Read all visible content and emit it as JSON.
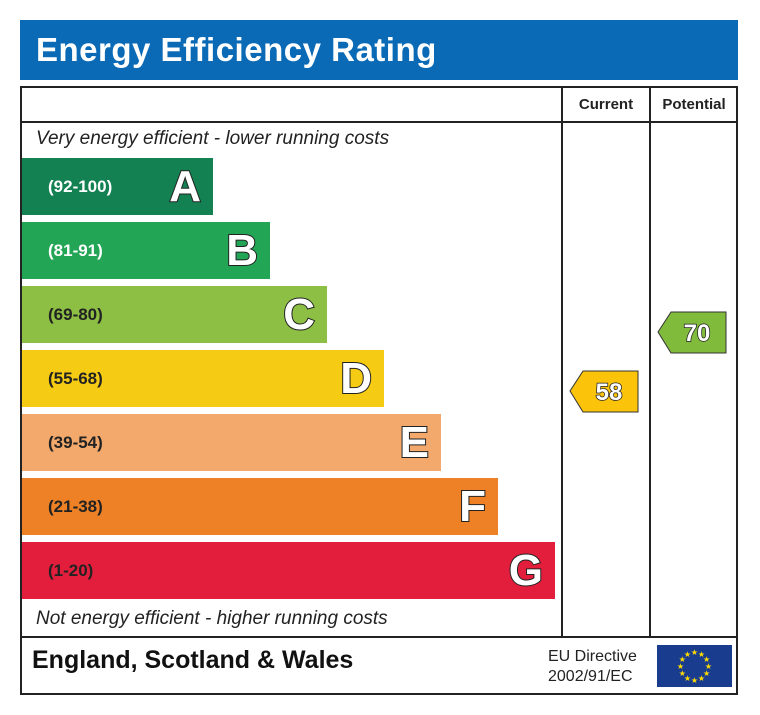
{
  "title": "Energy Efficiency Rating",
  "columns": {
    "current": "Current",
    "potential": "Potential"
  },
  "top_note": "Very energy efficient - lower running costs",
  "bottom_note": "Not energy efficient - higher running costs",
  "footer": {
    "region": "England, Scotland & Wales",
    "directive_line1": "EU Directive",
    "directive_line2": "2002/91/EC",
    "flag_icon": "eu-flag-icon"
  },
  "chart_data": {
    "type": "bar",
    "title": "Energy Efficiency Rating",
    "categories": [
      "A",
      "B",
      "C",
      "D",
      "E",
      "F",
      "G"
    ],
    "bands": [
      {
        "letter": "A",
        "range": "(92-100)",
        "color": "#138152"
      },
      {
        "letter": "B",
        "range": "(81-91)",
        "color": "#22a555"
      },
      {
        "letter": "C",
        "range": "(69-80)",
        "color": "#8cbf44"
      },
      {
        "letter": "D",
        "range": "(55-68)",
        "color": "#f5cb13"
      },
      {
        "letter": "E",
        "range": "(39-54)",
        "color": "#f2a96b"
      },
      {
        "letter": "F",
        "range": "(21-38)",
        "color": "#ee8126"
      },
      {
        "letter": "G",
        "range": "(1-20)",
        "color": "#e31e3d"
      }
    ],
    "current": {
      "value": 58,
      "band": "D",
      "color": "#fcc30b"
    },
    "potential": {
      "value": 70,
      "band": "C",
      "color": "#80bb3c"
    }
  }
}
